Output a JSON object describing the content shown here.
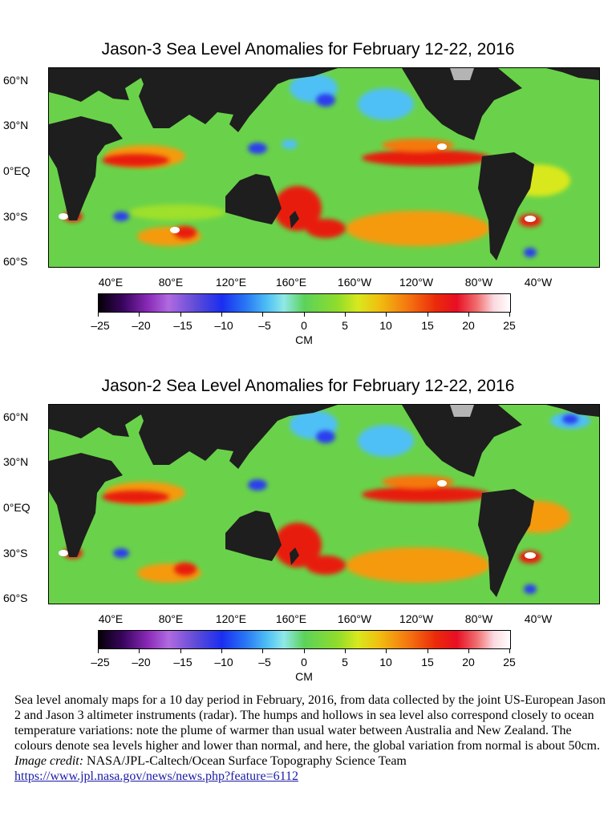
{
  "maps": [
    {
      "title": "Jason-3 Sea Level Anomalies for February 12-22, 2016",
      "lat_labels": [
        "60°N",
        "30°N",
        "0°EQ",
        "30°S",
        "60°S"
      ],
      "lon_labels": [
        "40°E",
        "80°E",
        "120°E",
        "160°E",
        "160°W",
        "120°W",
        "80°W",
        "40°W"
      ],
      "colorbar_ticks": [
        "–25",
        "–20",
        "–15",
        "–10",
        "–5",
        "0",
        "5",
        "10",
        "15",
        "20",
        "25"
      ],
      "colorbar_unit": "CM"
    },
    {
      "title": "Jason-2 Sea Level Anomalies for February 12-22, 2016",
      "lat_labels": [
        "60°N",
        "30°N",
        "0°EQ",
        "30°S",
        "60°S"
      ],
      "lon_labels": [
        "40°E",
        "80°E",
        "120°E",
        "160°E",
        "160°W",
        "120°W",
        "80°W",
        "40°W"
      ],
      "colorbar_ticks": [
        "–25",
        "–20",
        "–15",
        "–10",
        "–5",
        "0",
        "5",
        "10",
        "15",
        "20",
        "25"
      ],
      "colorbar_unit": "CM"
    }
  ],
  "colors": {
    "ocean_base": "#6ad24a",
    "land": "#1e1e1e",
    "ice": "#b4b4b4",
    "anomaly_high": "#e81c10",
    "anomaly_peak": "#ffffff",
    "anomaly_warm": "#f59a10",
    "anomaly_low": "#2a3ef0",
    "anomaly_cool": "#4fc0f5"
  },
  "caption": {
    "text": "Sea level anomaly maps for a 10 day period in February, 2016, from data collected by the joint US-European Jason 2 and Jason 3 altimeter instruments (radar).  The humps and hollows in sea level also correspond closely to ocean temperature variations: note the plume of warmer than usual water between Australia and New Zealand.  The colours denote sea levels higher and lower than normal, and here, the global variation from normal is about 50cm.",
    "credit_label": "Image credit:",
    "credit_text": " NASA/JPL-Caltech/Ocean Surface Topography Science Team",
    "link": "https://www.jpl.nasa.gov/news/news.php?feature=6112"
  }
}
